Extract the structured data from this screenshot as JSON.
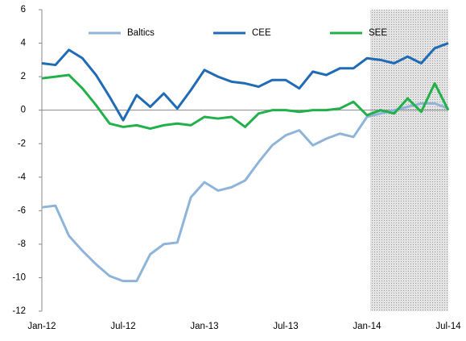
{
  "chart_data": {
    "type": "line",
    "categories": [
      "Jan-12",
      null,
      null,
      null,
      null,
      null,
      "Jul-12",
      null,
      null,
      null,
      null,
      null,
      "Jan-13",
      null,
      null,
      null,
      null,
      null,
      "Jul-13",
      null,
      null,
      null,
      null,
      null,
      "Jan-14",
      null,
      null,
      null,
      null,
      null,
      "Jul-14"
    ],
    "series": [
      {
        "name": "Baltics",
        "color": "#8fb4d9",
        "values": [
          -5.8,
          -5.7,
          -7.5,
          -8.4,
          -9.2,
          -9.9,
          -10.2,
          -10.2,
          -8.6,
          -8.0,
          -7.9,
          -5.2,
          -4.3,
          -4.8,
          -4.6,
          -4.2,
          -3.1,
          -2.1,
          -1.5,
          -1.2,
          -2.1,
          -1.7,
          -1.4,
          -1.6,
          -0.4,
          -0.2,
          0.0,
          0.2,
          0.4,
          0.4,
          0.1
        ]
      },
      {
        "name": "CEE",
        "color": "#1f6bb5",
        "values": [
          2.8,
          2.7,
          3.6,
          3.1,
          2.1,
          0.8,
          -0.6,
          0.9,
          0.2,
          1.0,
          0.1,
          1.2,
          2.4,
          2.0,
          1.7,
          1.6,
          1.4,
          1.8,
          1.8,
          1.3,
          2.3,
          2.1,
          2.5,
          2.5,
          3.1,
          3.0,
          2.8,
          3.2,
          2.8,
          3.7,
          4.0
        ]
      },
      {
        "name": "SEE",
        "color": "#22b04a",
        "values": [
          1.9,
          2.0,
          2.1,
          1.3,
          0.3,
          -0.8,
          -1.0,
          -0.9,
          -1.1,
          -0.9,
          -0.8,
          -0.9,
          -0.4,
          -0.5,
          -0.4,
          -1.0,
          -0.2,
          0.0,
          0.0,
          -0.1,
          0.0,
          0.0,
          0.1,
          0.5,
          -0.3,
          0.0,
          -0.2,
          0.7,
          -0.1,
          1.6,
          0.0
        ]
      }
    ],
    "ylim": [
      -12,
      6
    ],
    "yticks": [
      -12,
      -10,
      -8,
      -6,
      -4,
      -2,
      0,
      2,
      4,
      6
    ],
    "grid": false
  }
}
